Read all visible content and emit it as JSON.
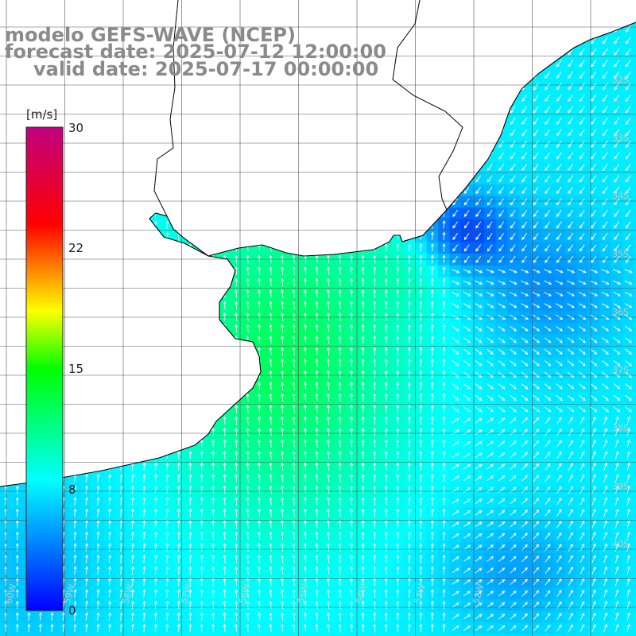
{
  "title": {
    "line1": "modelo GEFS-WAVE (NCEP)",
    "line2": "forecast date: 2025-07-12 12:00:00",
    "line3": "valid date: 2025-07-17 00:00:00"
  },
  "colorbar": {
    "unit": "[m/s]",
    "ticks": [
      "30",
      "22",
      "15",
      "8",
      "0"
    ],
    "stops": [
      "#0000ff",
      "#00ffff",
      "#00ff00",
      "#ffff00",
      "#ff0000",
      "#c00080"
    ]
  },
  "lat_labels": [
    "32S",
    "33S",
    "34S",
    "35S",
    "36S",
    "37S",
    "38S",
    "39S",
    "40S"
  ],
  "lon_labels": [
    "60W",
    "59W",
    "58W",
    "57W",
    "56W",
    "55W",
    "54W",
    "53W",
    "52W"
  ],
  "colors": {
    "land": "#ffffff",
    "grid": "#555555",
    "coast": "#000000",
    "arrow": "#ffffff"
  }
}
